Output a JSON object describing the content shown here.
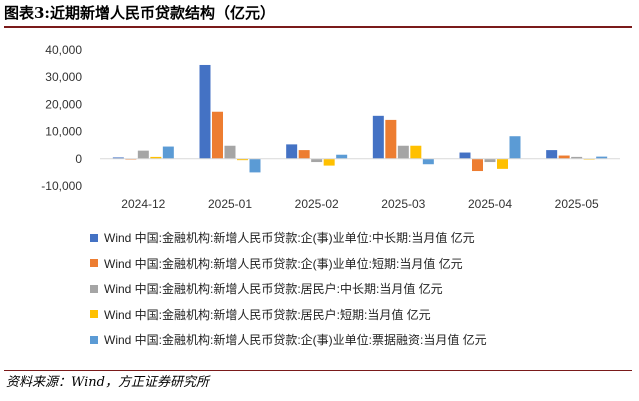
{
  "title": "图表3:近期新增人民币贷款结构（亿元）",
  "source": "资料来源：Wind，方正证券研究所",
  "chart_data": {
    "type": "bar",
    "title": "图表3:近期新增人民币贷款结构（亿元）",
    "categories": [
      "2024-12",
      "2025-01",
      "2025-02",
      "2025-03",
      "2025-04",
      "2025-05"
    ],
    "ylim": [
      -10000,
      40000
    ],
    "yticks": [
      40000,
      30000,
      20000,
      10000,
      0,
      -10000
    ],
    "ytick_labels": [
      "40,000",
      "30,000",
      "20,000",
      "10,000",
      "0",
      "-10,000"
    ],
    "grid": false,
    "legend_position": "bottom",
    "series": [
      {
        "name": "Wind 中国:金融机构:新增人民币贷款:企(事)业单位:中长期:当月值 亿元",
        "color": "#4472C4",
        "values": [
          500,
          34500,
          5300,
          15800,
          2300,
          3200
        ]
      },
      {
        "name": "Wind 中国:金融机构:新增人民币贷款:企(事)业单位:短期:当月值 亿元",
        "color": "#ED7D31",
        "values": [
          -200,
          17300,
          3200,
          14300,
          -4500,
          1200
        ]
      },
      {
        "name": "Wind 中国:金融机构:新增人民币贷款:居民户:中长期:当月值 亿元",
        "color": "#A5A5A5",
        "values": [
          3000,
          4800,
          -1200,
          4800,
          -1200,
          700
        ]
      },
      {
        "name": "Wind 中国:金融机构:新增人民币贷款:居民户:短期:当月值 亿元",
        "color": "#FFC000",
        "values": [
          700,
          -500,
          -2500,
          4800,
          -3700,
          -200
        ]
      },
      {
        "name": "Wind 中国:金融机构:新增人民币贷款:企(事)业单位:票据融资:当月值 亿元",
        "color": "#5B9BD5",
        "values": [
          4500,
          -5000,
          1500,
          -2000,
          8300,
          800
        ]
      }
    ]
  }
}
